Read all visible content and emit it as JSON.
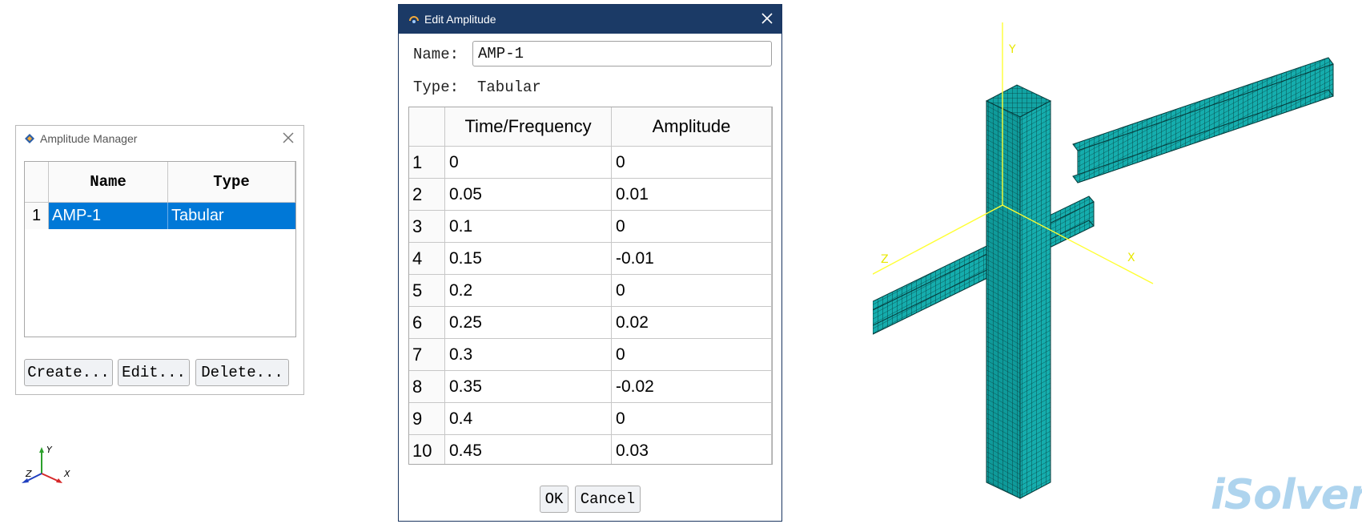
{
  "amplitude_manager": {
    "title": "Amplitude Manager",
    "columns": [
      "Name",
      "Type"
    ],
    "rows": [
      {
        "index": "1",
        "name": "AMP-1",
        "type": "Tabular"
      }
    ],
    "buttons": {
      "create": "Create...",
      "edit": "Edit...",
      "delete": "Delete..."
    }
  },
  "edit_amplitude": {
    "title": "Edit Amplitude",
    "name_label": "Name:",
    "name_value": "AMP-1",
    "type_label": "Type:",
    "type_value": "Tabular",
    "columns": [
      "Time/Frequency",
      "Amplitude"
    ],
    "rows": [
      {
        "index": "1",
        "time": "0",
        "amp": "0"
      },
      {
        "index": "2",
        "time": "0.05",
        "amp": "0.01"
      },
      {
        "index": "3",
        "time": "0.1",
        "amp": "0"
      },
      {
        "index": "4",
        "time": "0.15",
        "amp": "-0.01"
      },
      {
        "index": "5",
        "time": "0.2",
        "amp": "0"
      },
      {
        "index": "6",
        "time": "0.25",
        "amp": "0.02"
      },
      {
        "index": "7",
        "time": "0.3",
        "amp": "0"
      },
      {
        "index": "8",
        "time": "0.35",
        "amp": "-0.02"
      },
      {
        "index": "9",
        "time": "0.4",
        "amp": "0"
      },
      {
        "index": "10",
        "time": "0.45",
        "amp": "0.03"
      }
    ],
    "buttons": {
      "ok": "OK",
      "cancel": "Cancel"
    }
  },
  "triad": {
    "x": "X",
    "y": "Y",
    "z": "Z"
  },
  "model_axes": {
    "x": "X",
    "y": "Y",
    "z": "Z"
  },
  "logo_text": "iSolver",
  "colors": {
    "selection": "#0078d7",
    "titlebar": "#1b3a66",
    "mesh": "#12a3a3",
    "axes": "#ffff33"
  }
}
